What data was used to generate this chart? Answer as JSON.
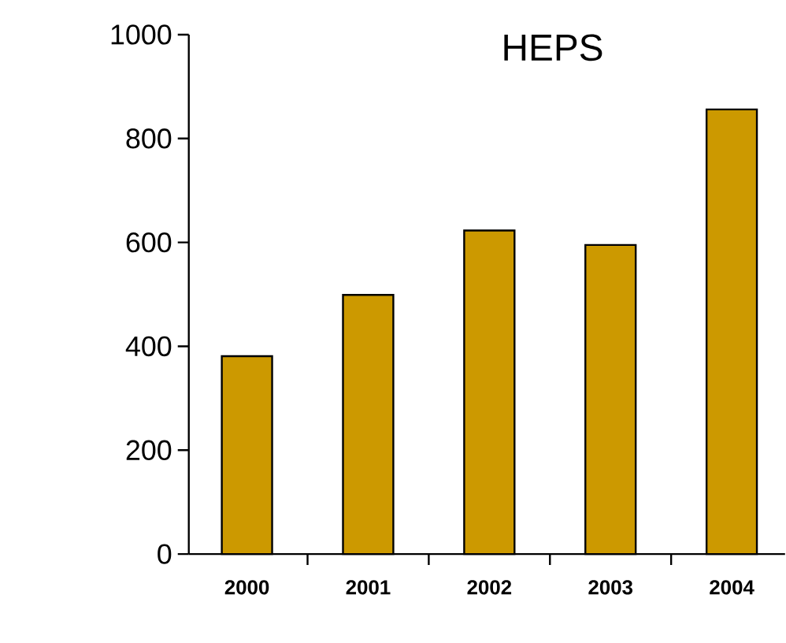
{
  "chart_data": {
    "type": "bar",
    "title": "HEPS",
    "categories": [
      "2000",
      "2001",
      "2002",
      "2003",
      "2004"
    ],
    "values": [
      381,
      499,
      623,
      595,
      856
    ],
    "color": "#cc9900",
    "ylim": [
      0,
      1000
    ],
    "yticks": [
      0,
      200,
      400,
      600,
      800,
      1000
    ]
  }
}
